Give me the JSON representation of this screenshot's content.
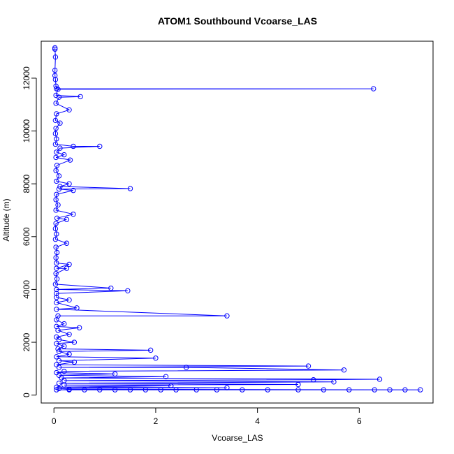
{
  "chart_data": {
    "type": "line",
    "title": "ATOM1 Southbound Vcoarse_LAS",
    "xlabel": "Vcoarse_LAS",
    "ylabel": "Altitude (m)",
    "xlim": [
      -0.25,
      7.45
    ],
    "ylim": [
      -300,
      13400
    ],
    "x_ticks": [
      0,
      2,
      4,
      6
    ],
    "y_ticks": [
      0,
      2000,
      4000,
      6000,
      8000,
      10000,
      12000
    ],
    "x_tick_labels": [
      "0",
      "2",
      "4",
      "6"
    ],
    "y_tick_labels": [
      "0",
      "2000",
      "4000",
      "6000",
      "8000",
      "10000",
      "12000"
    ],
    "grid": false,
    "color": "#0000ff",
    "marker": "open-circle",
    "series": [
      {
        "points": [
          [
            0.02,
            13150
          ],
          [
            0.02,
            13100
          ],
          [
            0.03,
            12800
          ],
          [
            0.02,
            12300
          ],
          [
            0.02,
            12100
          ],
          [
            0.03,
            11950
          ],
          [
            0.04,
            11700
          ],
          [
            0.05,
            11600
          ],
          [
            6.28,
            11600
          ],
          [
            0.08,
            11580
          ],
          [
            0.04,
            11350
          ],
          [
            0.52,
            11300
          ],
          [
            0.1,
            11280
          ],
          [
            0.04,
            11050
          ],
          [
            0.3,
            10800
          ],
          [
            0.05,
            10650
          ],
          [
            0.03,
            10400
          ],
          [
            0.12,
            10300
          ],
          [
            0.04,
            10100
          ],
          [
            0.03,
            9900
          ],
          [
            0.05,
            9700
          ],
          [
            0.03,
            9500
          ],
          [
            0.38,
            9420
          ],
          [
            0.9,
            9420
          ],
          [
            0.12,
            9350
          ],
          [
            0.05,
            9200
          ],
          [
            0.2,
            9100
          ],
          [
            0.04,
            9000
          ],
          [
            0.32,
            8900
          ],
          [
            0.06,
            8700
          ],
          [
            0.04,
            8500
          ],
          [
            0.1,
            8300
          ],
          [
            0.05,
            8100
          ],
          [
            0.3,
            8000
          ],
          [
            0.12,
            7900
          ],
          [
            1.5,
            7820
          ],
          [
            0.1,
            7800
          ],
          [
            0.38,
            7750
          ],
          [
            0.05,
            7600
          ],
          [
            0.04,
            7400
          ],
          [
            0.08,
            7200
          ],
          [
            0.04,
            7000
          ],
          [
            0.38,
            6850
          ],
          [
            0.06,
            6700
          ],
          [
            0.25,
            6650
          ],
          [
            0.04,
            6500
          ],
          [
            0.03,
            6300
          ],
          [
            0.05,
            6100
          ],
          [
            0.03,
            5900
          ],
          [
            0.25,
            5750
          ],
          [
            0.04,
            5600
          ],
          [
            0.06,
            5400
          ],
          [
            0.04,
            5200
          ],
          [
            0.05,
            5000
          ],
          [
            0.3,
            4950
          ],
          [
            0.05,
            4800
          ],
          [
            0.25,
            4800
          ],
          [
            0.04,
            4600
          ],
          [
            0.06,
            4400
          ],
          [
            0.03,
            4200
          ],
          [
            1.12,
            4050
          ],
          [
            0.05,
            4000
          ],
          [
            1.45,
            3950
          ],
          [
            0.05,
            3850
          ],
          [
            0.05,
            3700
          ],
          [
            0.3,
            3600
          ],
          [
            0.05,
            3500
          ],
          [
            0.45,
            3300
          ],
          [
            0.05,
            3250
          ],
          [
            3.4,
            3000
          ],
          [
            0.08,
            3000
          ],
          [
            0.05,
            2850
          ],
          [
            0.2,
            2700
          ],
          [
            0.05,
            2600
          ],
          [
            0.5,
            2550
          ],
          [
            0.08,
            2450
          ],
          [
            0.3,
            2300
          ],
          [
            0.05,
            2200
          ],
          [
            0.1,
            2100
          ],
          [
            0.4,
            2000
          ],
          [
            0.05,
            1950
          ],
          [
            0.2,
            1850
          ],
          [
            0.08,
            1750
          ],
          [
            1.9,
            1700
          ],
          [
            0.1,
            1650
          ],
          [
            0.3,
            1550
          ],
          [
            0.05,
            1450
          ],
          [
            2.0,
            1400
          ],
          [
            0.1,
            1300
          ],
          [
            0.4,
            1250
          ],
          [
            0.05,
            1150
          ],
          [
            5.0,
            1100
          ],
          [
            0.1,
            1050
          ],
          [
            2.6,
            1050
          ],
          [
            5.7,
            950
          ],
          [
            0.2,
            900
          ],
          [
            0.05,
            850
          ],
          [
            1.2,
            800
          ],
          [
            0.1,
            750
          ],
          [
            2.2,
            700
          ],
          [
            0.15,
            650
          ],
          [
            6.4,
            600
          ],
          [
            5.1,
            580
          ],
          [
            0.2,
            550
          ],
          [
            5.5,
            500
          ],
          [
            0.1,
            450
          ],
          [
            4.8,
            400
          ],
          [
            0.2,
            380
          ],
          [
            2.3,
            350
          ],
          [
            0.05,
            300
          ],
          [
            3.4,
            280
          ],
          [
            0.1,
            250
          ],
          [
            0.3,
            220
          ],
          [
            7.2,
            200
          ],
          [
            6.9,
            200
          ],
          [
            6.6,
            200
          ],
          [
            6.3,
            200
          ],
          [
            5.8,
            200
          ],
          [
            5.3,
            200
          ],
          [
            4.8,
            200
          ],
          [
            4.2,
            200
          ],
          [
            3.7,
            200
          ],
          [
            3.2,
            200
          ],
          [
            2.8,
            200
          ],
          [
            2.4,
            200
          ],
          [
            2.1,
            200
          ],
          [
            1.8,
            200
          ],
          [
            1.5,
            200
          ],
          [
            1.2,
            200
          ],
          [
            0.9,
            200
          ],
          [
            0.6,
            200
          ],
          [
            0.3,
            200
          ],
          [
            0.05,
            200
          ]
        ]
      }
    ]
  }
}
